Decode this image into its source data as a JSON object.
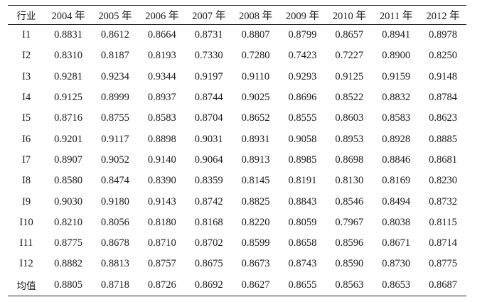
{
  "table": {
    "header": [
      "行业",
      "2004 年",
      "2005 年",
      "2006 年",
      "2007 年",
      "2008 年",
      "2009 年",
      "2010 年",
      "2011 年",
      "2012 年"
    ],
    "rows": [
      [
        "I1",
        "0.8831",
        "0.8612",
        "0.8664",
        "0.8731",
        "0.8807",
        "0.8799",
        "0.8657",
        "0.8941",
        "0.8978"
      ],
      [
        "I2",
        "0.8310",
        "0.8187",
        "0.8193",
        "0.7330",
        "0.7280",
        "0.7423",
        "0.7227",
        "0.8900",
        "0.8250"
      ],
      [
        "I3",
        "0.9281",
        "0.9234",
        "0.9344",
        "0.9197",
        "0.9110",
        "0.9293",
        "0.9125",
        "0.9159",
        "0.9148"
      ],
      [
        "I4",
        "0.9125",
        "0.8999",
        "0.8937",
        "0.8744",
        "0.9025",
        "0.8696",
        "0.8522",
        "0.8832",
        "0.8784"
      ],
      [
        "I5",
        "0.8716",
        "0.8755",
        "0.8583",
        "0.8704",
        "0.8652",
        "0.8555",
        "0.8603",
        "0.8583",
        "0.8623"
      ],
      [
        "I6",
        "0.9201",
        "0.9117",
        "0.8898",
        "0.9031",
        "0.8931",
        "0.9058",
        "0.8953",
        "0.8928",
        "0.8885"
      ],
      [
        "I7",
        "0.8907",
        "0.9052",
        "0.9140",
        "0.9064",
        "0.8913",
        "0.8985",
        "0.8698",
        "0.8846",
        "0.8681"
      ],
      [
        "I8",
        "0.8580",
        "0.8474",
        "0.8390",
        "0.8359",
        "0.8145",
        "0.8191",
        "0.8130",
        "0.8169",
        "0.8230"
      ],
      [
        "I9",
        "0.9030",
        "0.9180",
        "0.9143",
        "0.8742",
        "0.8825",
        "0.8843",
        "0.8546",
        "0.8494",
        "0.8732"
      ],
      [
        "I10",
        "0.8210",
        "0.8056",
        "0.8180",
        "0.8168",
        "0.8220",
        "0.8059",
        "0.7967",
        "0.8038",
        "0.8115"
      ],
      [
        "I11",
        "0.8775",
        "0.8678",
        "0.8710",
        "0.8702",
        "0.8599",
        "0.8658",
        "0.8596",
        "0.8671",
        "0.8714"
      ],
      [
        "I12",
        "0.8882",
        "0.8813",
        "0.8757",
        "0.8675",
        "0.8673",
        "0.8743",
        "0.8590",
        "0.8730",
        "0.8775"
      ],
      [
        "均值",
        "0.8805",
        "0.8718",
        "0.8726",
        "0.8692",
        "0.8627",
        "0.8655",
        "0.8563",
        "0.8653",
        "0.8687"
      ]
    ]
  }
}
